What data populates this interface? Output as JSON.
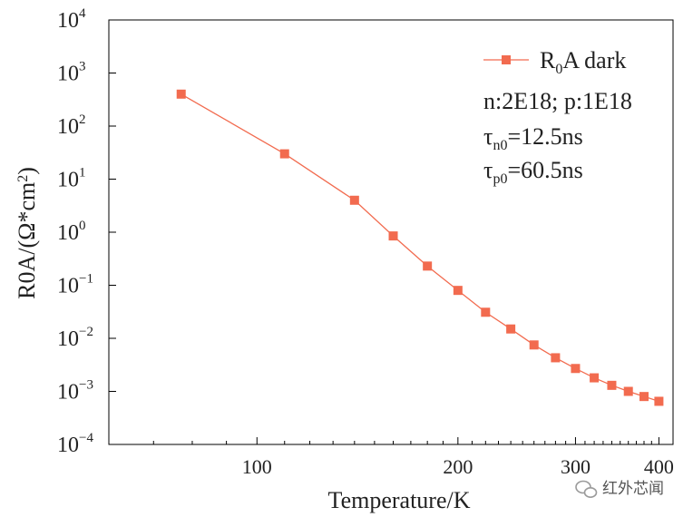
{
  "chart_data": {
    "type": "line",
    "xlabel": "Temperature/K",
    "ylabel_base": "R0A/(Ω*cm",
    "ylabel_sup": "2",
    "ylabel_close": ")",
    "xscale": "log",
    "yscale": "log",
    "xlim": [
      60,
      420
    ],
    "ylim": [
      0.0001,
      10000
    ],
    "x_ticks": [
      {
        "value": 100,
        "label": "100"
      },
      {
        "value": 200,
        "label": "200"
      },
      {
        "value": 300,
        "label": "300"
      },
      {
        "value": 400,
        "label": "400"
      }
    ],
    "y_ticks": [
      {
        "value": 0.0001,
        "base": "10",
        "exp": "−4"
      },
      {
        "value": 0.001,
        "base": "10",
        "exp": "−3"
      },
      {
        "value": 0.01,
        "base": "10",
        "exp": "−2"
      },
      {
        "value": 0.1,
        "base": "10",
        "exp": "−1"
      },
      {
        "value": 1,
        "base": "10",
        "exp": "0"
      },
      {
        "value": 10,
        "base": "10",
        "exp": "1"
      },
      {
        "value": 100,
        "base": "10",
        "exp": "2"
      },
      {
        "value": 1000,
        "base": "10",
        "exp": "3"
      },
      {
        "value": 10000,
        "base": "10",
        "exp": "4"
      }
    ],
    "grid": false,
    "legend_position": "top-right",
    "series": [
      {
        "legend_main": "R",
        "legend_sub": "0",
        "legend_rest": "A dark",
        "color": "#f26b4f",
        "marker": "square",
        "x": [
          77,
          110,
          140,
          160,
          180,
          200,
          220,
          240,
          260,
          280,
          300,
          320,
          340,
          360,
          380,
          400
        ],
        "y": [
          400,
          30,
          4.0,
          0.85,
          0.23,
          0.08,
          0.031,
          0.015,
          0.0075,
          0.0043,
          0.0027,
          0.0018,
          0.0013,
          0.001,
          0.0008,
          0.00065
        ]
      }
    ],
    "annotations": [
      {
        "text": "n:2E18; p:1E18"
      },
      {
        "main": "τ",
        "sub": "n0",
        "rest": "=12.5ns"
      },
      {
        "main": "τ",
        "sub": "p0",
        "rest": "=60.5ns"
      }
    ]
  },
  "watermark": {
    "icon": "wechat-icon",
    "text": "红外芯闻"
  }
}
